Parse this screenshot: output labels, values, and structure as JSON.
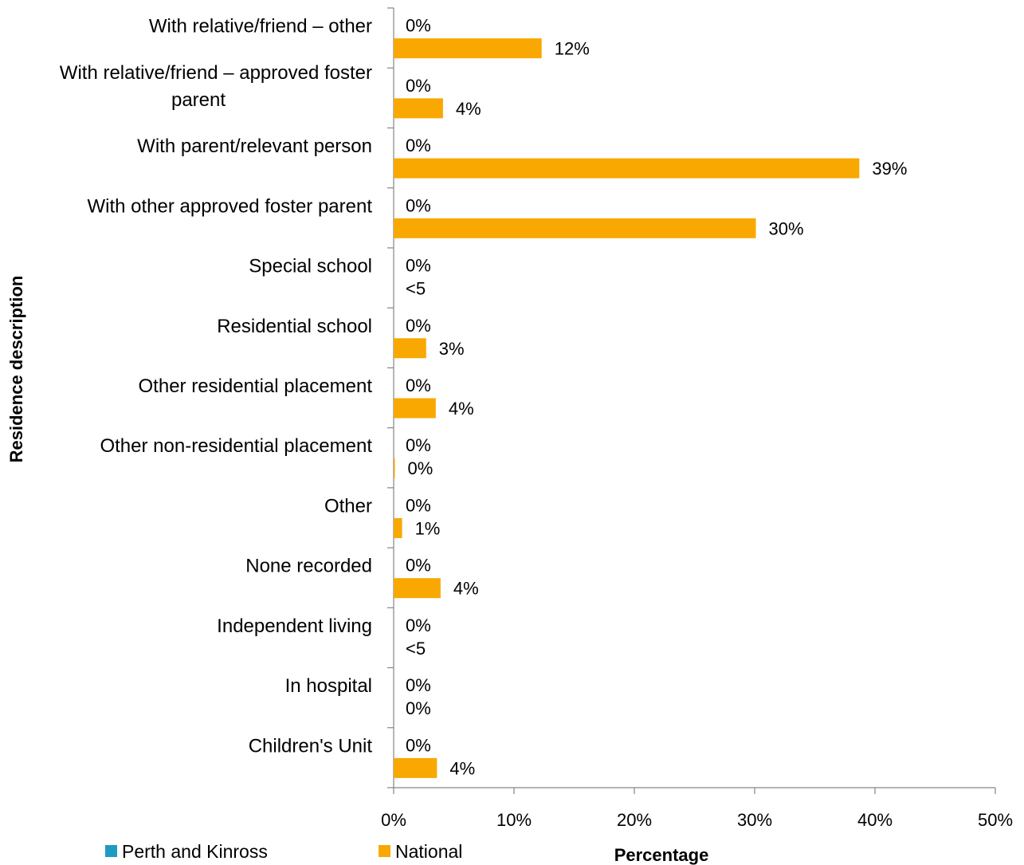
{
  "chart_data": {
    "type": "bar",
    "orientation": "horizontal",
    "ylabel": "Residence description",
    "xlabel": "Percentage",
    "xlim": [
      0,
      50
    ],
    "x_ticks": [
      "0%",
      "10%",
      "20%",
      "30%",
      "40%",
      "50%"
    ],
    "categories": [
      "With relative/friend – other",
      "With relative/friend – approved foster parent",
      "With parent/relevant person",
      "With other approved foster parent",
      "Special school",
      "Residential school",
      "Other residential placement",
      "Other non-residential placement",
      "Other",
      "None recorded",
      "Independent living",
      "In hospital",
      "Children's Unit"
    ],
    "category_label_lines": [
      [
        "With relative/friend – other"
      ],
      [
        "With relative/friend – approved foster",
        "parent"
      ],
      [
        "With parent/relevant person"
      ],
      [
        "With other approved foster parent"
      ],
      [
        "Special school"
      ],
      [
        "Residential school"
      ],
      [
        "Other residential placement"
      ],
      [
        "Other non-residential placement"
      ],
      [
        "Other"
      ],
      [
        "None recorded"
      ],
      [
        "Independent living"
      ],
      [
        "In hospital"
      ],
      [
        "Children's Unit"
      ]
    ],
    "series": [
      {
        "name": "Perth and Kinross",
        "color": "#1F9BC3",
        "values": [
          0,
          0,
          0,
          0,
          0,
          0,
          0,
          0,
          0,
          0,
          0,
          0,
          0
        ],
        "labels": [
          "0%",
          "0%",
          "0%",
          "0%",
          "0%",
          "0%",
          "0%",
          "0%",
          "0%",
          "0%",
          "0%",
          "0%",
          "0%"
        ]
      },
      {
        "name": "National",
        "color": "#F8A800",
        "values": [
          12.3,
          4.1,
          38.7,
          30.1,
          0,
          2.7,
          3.5,
          0.1,
          0.7,
          3.9,
          0,
          0,
          3.6
        ],
        "labels": [
          "12%",
          "4%",
          "39%",
          "30%",
          "<5",
          "3%",
          "4%",
          "0%",
          "1%",
          "4%",
          "<5",
          "0%",
          "4%"
        ]
      }
    ],
    "suppressed_label_color": "#FF0000",
    "grid": false,
    "legend_position": "bottom-left"
  }
}
